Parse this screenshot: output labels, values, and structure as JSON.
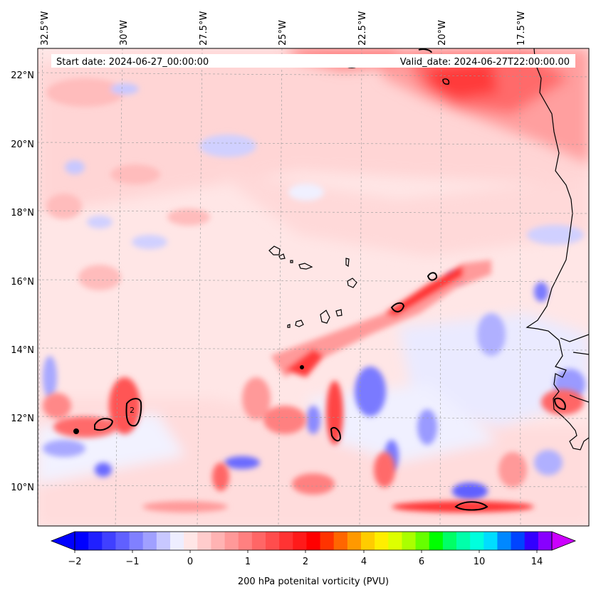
{
  "map": {
    "lon_labels": [
      "32.5°W",
      "30°W",
      "27.5°W",
      "25°W",
      "22.5°W",
      "20°W",
      "17.5°W"
    ],
    "lat_labels": [
      "22°N",
      "20°N",
      "18°N",
      "16°N",
      "14°N",
      "12°N",
      "10°N"
    ],
    "start_date": "Start date: 2024-06-27_00:00:00",
    "valid_date": "Valid_date: 2024-06-27T22:00:00.00",
    "contour_label": "2"
  },
  "colorbar": {
    "ticks": [
      "−2",
      "−1",
      "0",
      "1",
      "2",
      "4",
      "6",
      "10",
      "14"
    ],
    "title": "200 hPa potenital vorticity (PVU)",
    "colors": [
      "#0000ff",
      "#2020ff",
      "#4040ff",
      "#6060ff",
      "#8080ff",
      "#a0a0ff",
      "#c8c8ff",
      "#eeeeff",
      "#ffe6e6",
      "#ffcccc",
      "#ffb3b3",
      "#ff9999",
      "#ff8080",
      "#ff6666",
      "#ff4d4d",
      "#ff3333",
      "#ff1a1a",
      "#ff0000",
      "#ff3300",
      "#ff6600",
      "#ff9900",
      "#ffcc00",
      "#ffee00",
      "#ddff00",
      "#aaff00",
      "#66ff00",
      "#00ff00",
      "#00ff66",
      "#00ffaa",
      "#00ffdd",
      "#00ddff",
      "#0088ff",
      "#0044ff",
      "#3300ff",
      "#8800ff"
    ]
  }
}
